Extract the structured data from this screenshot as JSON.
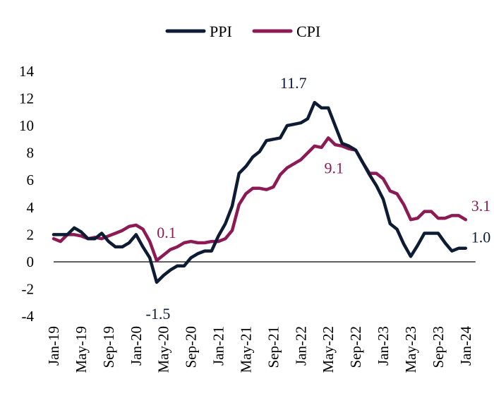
{
  "chart_data": {
    "type": "line",
    "colors": {
      "PPI": "#0d1b33",
      "CPI": "#8b1a55"
    },
    "ylim": [
      -4,
      14
    ],
    "yticks": [
      "14",
      "12",
      "10",
      "8",
      "6",
      "4",
      "2",
      "0",
      "-2",
      "-4"
    ],
    "xtick_labels": [
      "Jan-19",
      "May-19",
      "Sep-19",
      "Jan-20",
      "May-20",
      "Sep-20",
      "Jan-21",
      "May-21",
      "Sep-21",
      "Jan-22",
      "May-22",
      "Sep-22",
      "Jan-23",
      "May-23",
      "Sep-23",
      "Jan-24"
    ],
    "legend_position": "top-center",
    "x": [
      "Jan-19",
      "Feb-19",
      "Mar-19",
      "Apr-19",
      "May-19",
      "Jun-19",
      "Jul-19",
      "Aug-19",
      "Sep-19",
      "Oct-19",
      "Nov-19",
      "Dec-19",
      "Jan-20",
      "Feb-20",
      "Mar-20",
      "Apr-20",
      "May-20",
      "Jun-20",
      "Jul-20",
      "Aug-20",
      "Sep-20",
      "Oct-20",
      "Nov-20",
      "Dec-20",
      "Jan-21",
      "Feb-21",
      "Mar-21",
      "Apr-21",
      "May-21",
      "Jun-21",
      "Jul-21",
      "Aug-21",
      "Sep-21",
      "Oct-21",
      "Nov-21",
      "Dec-21",
      "Jan-22",
      "Feb-22",
      "Mar-22",
      "Apr-22",
      "May-22",
      "Jun-22",
      "Jul-22",
      "Aug-22",
      "Sep-22",
      "Oct-22",
      "Nov-22",
      "Dec-22",
      "Jan-23",
      "Feb-23",
      "Mar-23",
      "Apr-23",
      "May-23",
      "Jun-23",
      "Jul-23",
      "Aug-23",
      "Sep-23",
      "Oct-23",
      "Nov-23",
      "Dec-23",
      "Jan-24"
    ],
    "series": [
      {
        "name": "PPI",
        "values": [
          2.0,
          2.0,
          2.0,
          2.5,
          2.2,
          1.7,
          1.7,
          2.1,
          1.5,
          1.1,
          1.1,
          1.4,
          2.0,
          1.1,
          0.3,
          -1.5,
          -1.0,
          -0.6,
          -0.3,
          -0.3,
          0.3,
          0.6,
          0.8,
          0.8,
          1.9,
          2.8,
          4.1,
          6.5,
          7.0,
          7.7,
          8.1,
          8.9,
          9.0,
          9.1,
          10.0,
          10.1,
          10.2,
          10.5,
          11.7,
          11.3,
          11.3,
          10.0,
          8.7,
          8.5,
          8.2,
          7.3,
          6.4,
          5.6,
          4.6,
          2.8,
          2.4,
          1.3,
          0.4,
          1.2,
          2.1,
          2.1,
          2.1,
          1.4,
          0.8,
          1.0,
          1.0
        ]
      },
      {
        "name": "CPI",
        "values": [
          1.7,
          1.5,
          2.0,
          2.0,
          1.9,
          1.7,
          1.8,
          1.7,
          1.9,
          2.1,
          2.3,
          2.6,
          2.7,
          2.4,
          1.5,
          0.1,
          0.5,
          0.9,
          1.1,
          1.4,
          1.5,
          1.4,
          1.4,
          1.5,
          1.5,
          1.7,
          2.3,
          4.2,
          5.0,
          5.4,
          5.4,
          5.3,
          5.5,
          6.4,
          6.9,
          7.2,
          7.5,
          8.0,
          8.5,
          8.4,
          9.1,
          8.6,
          8.5,
          8.3,
          8.2,
          7.3,
          6.5,
          6.5,
          6.1,
          5.2,
          5.0,
          4.2,
          3.1,
          3.2,
          3.7,
          3.7,
          3.2,
          3.2,
          3.4,
          3.4,
          3.1
        ]
      }
    ],
    "annotations": [
      {
        "label": "11.7",
        "series": "PPI",
        "x": "Mar-22"
      },
      {
        "label": "-1.5",
        "series": "PPI",
        "x": "Apr-20"
      },
      {
        "label": "1.0",
        "series": "PPI",
        "x": "Jan-24"
      },
      {
        "label": "0.1",
        "series": "CPI",
        "x": "Apr-20"
      },
      {
        "label": "9.1",
        "series": "CPI",
        "x": "May-22"
      },
      {
        "label": "3.1",
        "series": "CPI",
        "x": "Jan-24"
      }
    ]
  }
}
